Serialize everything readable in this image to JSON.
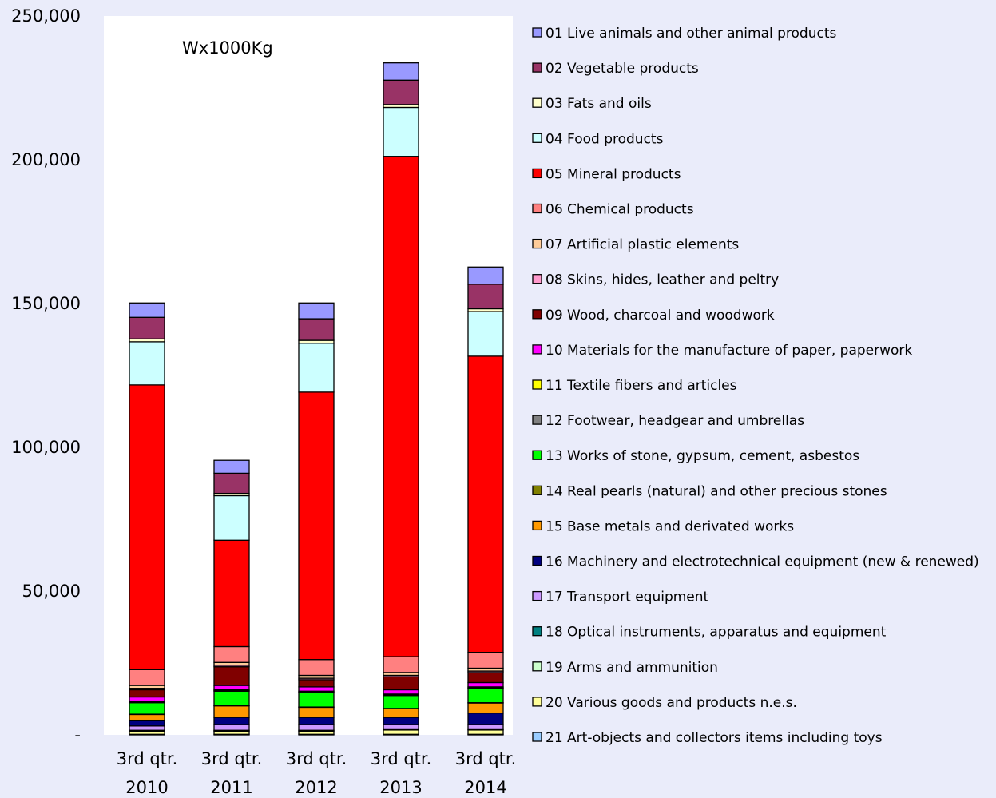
{
  "chart_data": {
    "type": "bar",
    "stacked": true,
    "title": "",
    "unit_label": "Wx1000Kg",
    "categories": [
      [
        "3rd qtr.",
        "2010"
      ],
      [
        "3rd qtr.",
        "2011"
      ],
      [
        "3rd qtr.",
        "2012"
      ],
      [
        "3rd qtr.",
        "2013"
      ],
      [
        "3rd qtr.",
        "2014"
      ]
    ],
    "ylim": [
      0,
      250000
    ],
    "yticks": [
      0,
      50000,
      100000,
      150000,
      200000,
      250000
    ],
    "ytick_labels": [
      "-",
      "50,000",
      "100,000",
      "150,000",
      "200,000",
      "250,000"
    ],
    "legend_position": "right",
    "grid": false,
    "series": [
      {
        "name": "01 Live animals and other animal products",
        "color": "#9999ff",
        "values": [
          5000,
          4500,
          5500,
          6000,
          6000
        ]
      },
      {
        "name": "02 Vegetable products",
        "color": "#993366",
        "values": [
          7500,
          7000,
          7500,
          8500,
          8500
        ]
      },
      {
        "name": "03 Fats and oils",
        "color": "#ffffcc",
        "values": [
          1000,
          800,
          1000,
          1000,
          1000
        ]
      },
      {
        "name": "04 Food products",
        "color": "#ccffff",
        "values": [
          15000,
          15500,
          17000,
          17000,
          15500
        ]
      },
      {
        "name": "05 Mineral products",
        "color": "#ff0000",
        "values": [
          99000,
          37000,
          93000,
          174000,
          103000
        ]
      },
      {
        "name": "06 Chemical products",
        "color": "#ff8080",
        "values": [
          5500,
          5500,
          5500,
          5500,
          5500
        ]
      },
      {
        "name": "07 Artificial plastic elements",
        "color": "#ffcc99",
        "values": [
          1000,
          1000,
          1000,
          1000,
          1000
        ]
      },
      {
        "name": "08 Skins, hides, leather and peltry",
        "color": "#ff99cc",
        "values": [
          500,
          500,
          500,
          500,
          500
        ]
      },
      {
        "name": "09 Wood, charcoal and woodwork",
        "color": "#800000",
        "values": [
          2500,
          6500,
          2500,
          4500,
          3500
        ]
      },
      {
        "name": "10 Materials for the manufacture of paper, paperwork",
        "color": "#ff00ff",
        "values": [
          1500,
          1500,
          1500,
          1500,
          1500
        ]
      },
      {
        "name": "11 Textile fibers and articles",
        "color": "#ffff00",
        "values": [
          300,
          300,
          300,
          300,
          300
        ]
      },
      {
        "name": "12 Footwear, headgear and umbrellas",
        "color": "#808080",
        "values": [
          200,
          200,
          200,
          200,
          200
        ]
      },
      {
        "name": "13 Works of stone, gypsum, cement, asbestos",
        "color": "#00ff00",
        "values": [
          4000,
          5000,
          5000,
          4500,
          5000
        ]
      },
      {
        "name": "14 Real pearls (natural) and other precious stones",
        "color": "#808000",
        "values": [
          100,
          100,
          100,
          100,
          100
        ]
      },
      {
        "name": "15 Base metals and derivated works",
        "color": "#ff9900",
        "values": [
          2000,
          4000,
          3500,
          3000,
          3500
        ]
      },
      {
        "name": "16 Machinery and electrotechnical equipment (new & renewed)",
        "color": "#000080",
        "values": [
          2000,
          2500,
          2500,
          2500,
          4000
        ]
      },
      {
        "name": "17 Transport equipment",
        "color": "#cc99ff",
        "values": [
          1500,
          2000,
          2000,
          1500,
          1500
        ]
      },
      {
        "name": "18 Optical instruments, apparatus and equipment",
        "color": "#008080",
        "values": [
          200,
          200,
          200,
          200,
          200
        ]
      },
      {
        "name": "19 Arms and ammunition",
        "color": "#ccffcc",
        "values": [
          200,
          200,
          200,
          200,
          200
        ]
      },
      {
        "name": "20 Various goods and products n.e.s.",
        "color": "#ffff99",
        "values": [
          1000,
          1000,
          1000,
          1500,
          1500
        ]
      },
      {
        "name": "21 Art-objects and collectors items including toys",
        "color": "#99ccff",
        "values": [
          200,
          200,
          200,
          200,
          200
        ]
      }
    ]
  }
}
